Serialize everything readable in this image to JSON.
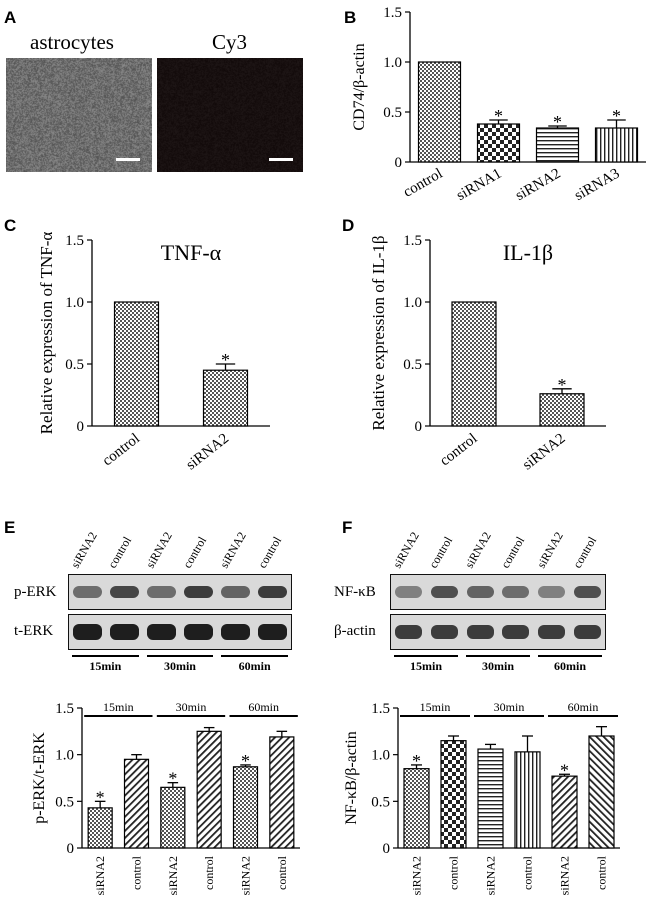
{
  "panels": {
    "A": "A",
    "B": "B",
    "C": "C",
    "D": "D",
    "E": "E",
    "F": "F"
  },
  "micrographs": [
    {
      "label": "astrocytes",
      "tone": "#6e6e6e"
    },
    {
      "label": "Cy3",
      "tone": "#161010"
    }
  ],
  "blot_E": {
    "lanes": [
      "siRNA2",
      "control",
      "siRNA2",
      "control",
      "siRNA2",
      "control"
    ],
    "rows": [
      "p-ERK",
      "t-ERK"
    ],
    "times": [
      "15min",
      "30min",
      "60min"
    ]
  },
  "blot_F": {
    "lanes": [
      "siRNA2",
      "control",
      "siRNA2",
      "control",
      "siRNA2",
      "control"
    ],
    "rows": [
      "NF-κB",
      "β-actin"
    ],
    "times": [
      "15min",
      "30min",
      "60min"
    ]
  },
  "colors": {
    "bar_fill": "#ffffff",
    "stroke": "#000000",
    "blot_bg": "#d9d9d9",
    "band": "#1c1c1c"
  },
  "chart_data": [
    {
      "panel": "B",
      "type": "bar",
      "categories": [
        "control",
        "siRNA1",
        "siRNA2",
        "siRNA3"
      ],
      "values": [
        1.0,
        0.38,
        0.34,
        0.34
      ],
      "errors": [
        0,
        0.04,
        0.02,
        0.08
      ],
      "significance": [
        "",
        "*",
        "*",
        "*"
      ],
      "patterns": [
        "dots",
        "checker",
        "hlines",
        "vlines"
      ],
      "title": "",
      "xlabel": "",
      "ylabel": "CD74/β-actin",
      "ylim": [
        0,
        1.5
      ],
      "yticks": [
        "0",
        "0.5",
        "1.0",
        "1.5"
      ]
    },
    {
      "panel": "C",
      "type": "bar",
      "categories": [
        "control",
        "siRNA2"
      ],
      "values": [
        1.0,
        0.45
      ],
      "errors": [
        0,
        0.05
      ],
      "significance": [
        "",
        "*"
      ],
      "patterns": [
        "dots",
        "dots"
      ],
      "title": "TNF-α",
      "xlabel": "",
      "ylabel": "Relative expression of TNF-α",
      "ylim": [
        0,
        1.5
      ],
      "yticks": [
        "0",
        "0.5",
        "1.0",
        "1.5"
      ]
    },
    {
      "panel": "D",
      "type": "bar",
      "categories": [
        "control",
        "siRNA2"
      ],
      "values": [
        1.0,
        0.26
      ],
      "errors": [
        0,
        0.04
      ],
      "significance": [
        "",
        "*"
      ],
      "patterns": [
        "dots",
        "dots"
      ],
      "title": "IL-1β",
      "xlabel": "",
      "ylabel": "Relative expression of IL-1β",
      "ylim": [
        0,
        1.5
      ],
      "yticks": [
        "0",
        "0.5",
        "1.0",
        "1.5"
      ]
    },
    {
      "panel": "E",
      "type": "bar",
      "categories": [
        "siRNA2",
        "control",
        "siRNA2",
        "control",
        "siRNA2",
        "control"
      ],
      "groups": [
        "15min",
        "30min",
        "60min"
      ],
      "values": [
        0.43,
        0.95,
        0.65,
        1.25,
        0.87,
        1.19
      ],
      "errors": [
        0.07,
        0.05,
        0.05,
        0.04,
        0.02,
        0.06
      ],
      "significance": [
        "*",
        "",
        "*",
        "",
        "*",
        ""
      ],
      "patterns": [
        "dots",
        "diag",
        "dots",
        "diag",
        "dots",
        "diag"
      ],
      "title": "",
      "xlabel": "",
      "ylabel": "p-ERK/t-ERK",
      "ylim": [
        0,
        1.5
      ],
      "yticks": [
        "0",
        "0.5",
        "1.0",
        "1.5"
      ]
    },
    {
      "panel": "F",
      "type": "bar",
      "categories": [
        "siRNA2",
        "control",
        "siRNA2",
        "control",
        "siRNA2",
        "control"
      ],
      "groups": [
        "15min",
        "30min",
        "60min"
      ],
      "values": [
        0.85,
        1.15,
        1.06,
        1.03,
        0.77,
        1.2
      ],
      "errors": [
        0.04,
        0.05,
        0.05,
        0.17,
        0.02,
        0.1
      ],
      "significance": [
        "*",
        "",
        "",
        "",
        "*",
        ""
      ],
      "patterns": [
        "dots",
        "checker",
        "hlines",
        "vlines",
        "diag",
        "rdiag"
      ],
      "title": "",
      "xlabel": "",
      "ylabel": "NF-κB/β-actin",
      "ylim": [
        0,
        1.5
      ],
      "yticks": [
        "0",
        "0.5",
        "1.0",
        "1.5"
      ]
    }
  ]
}
